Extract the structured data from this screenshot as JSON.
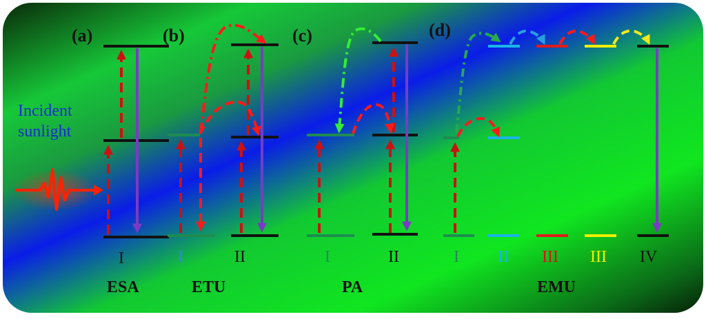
{
  "panels": {
    "a": {
      "tag": "(a)",
      "process": "ESA",
      "ion": "I"
    },
    "b": {
      "tag": "(b)",
      "process": "ETU",
      "ions": [
        "I",
        "II"
      ]
    },
    "c": {
      "tag": "(c)",
      "process": "PA",
      "ions": [
        "I",
        "II"
      ]
    },
    "d": {
      "tag": "(d)",
      "process": "EMU",
      "ions": [
        "I",
        "II",
        "III",
        "III",
        "IV"
      ]
    }
  },
  "incident": {
    "line1": "Incident",
    "line2": "sunlight"
  },
  "colors": {
    "ground_level": "#111111",
    "sensitizer_level": "#1e8c50",
    "migrator_level": "#19b6e6",
    "red_level": "#e01b1b",
    "yellow_level": "#f3f000",
    "pump": "#cc1111",
    "emission": "#7a3bc4",
    "energy_transfer": "#ff1a1a",
    "pa_transfer": "#33ee33",
    "emu_migration_1": "#2a9fe0",
    "emu_migration_3": "#f0e820",
    "incident_text": "#1a2bd6",
    "roman_I": "#2a8fc0",
    "roman_II_emu": "#19b6e6",
    "roman_III_red": "#dd1111",
    "roman_III_yellow": "#f3f000"
  }
}
